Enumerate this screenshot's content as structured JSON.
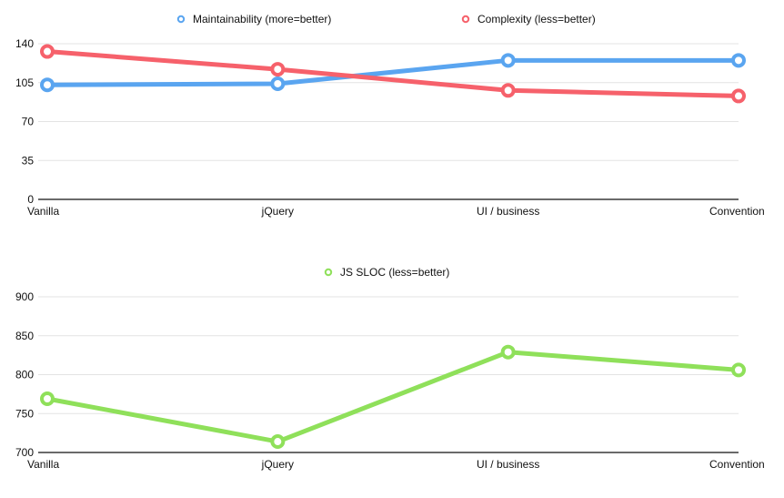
{
  "chart_data": [
    {
      "type": "line",
      "categories": [
        "Vanilla",
        "jQuery",
        "UI / business",
        "Convention"
      ],
      "series": [
        {
          "name": "Maintainability (more=better)",
          "color": "#5aa5f0",
          "values": [
            103,
            104,
            125,
            125
          ]
        },
        {
          "name": "Complexity (less=better)",
          "color": "#f6616b",
          "values": [
            133,
            117,
            98,
            93
          ]
        }
      ],
      "yticks": [
        0,
        35,
        70,
        105,
        140
      ],
      "ylim": [
        0,
        140
      ],
      "grid": true,
      "legend": "top"
    },
    {
      "type": "line",
      "categories": [
        "Vanilla",
        "jQuery",
        "UI / business",
        "Convention"
      ],
      "series": [
        {
          "name": "JS SLOC (less=better)",
          "color": "#8fe05a",
          "values": [
            769,
            714,
            829,
            806
          ]
        }
      ],
      "yticks": [
        700,
        750,
        800,
        850,
        900
      ],
      "ylim": [
        700,
        900
      ],
      "grid": true,
      "legend": "top"
    }
  ]
}
